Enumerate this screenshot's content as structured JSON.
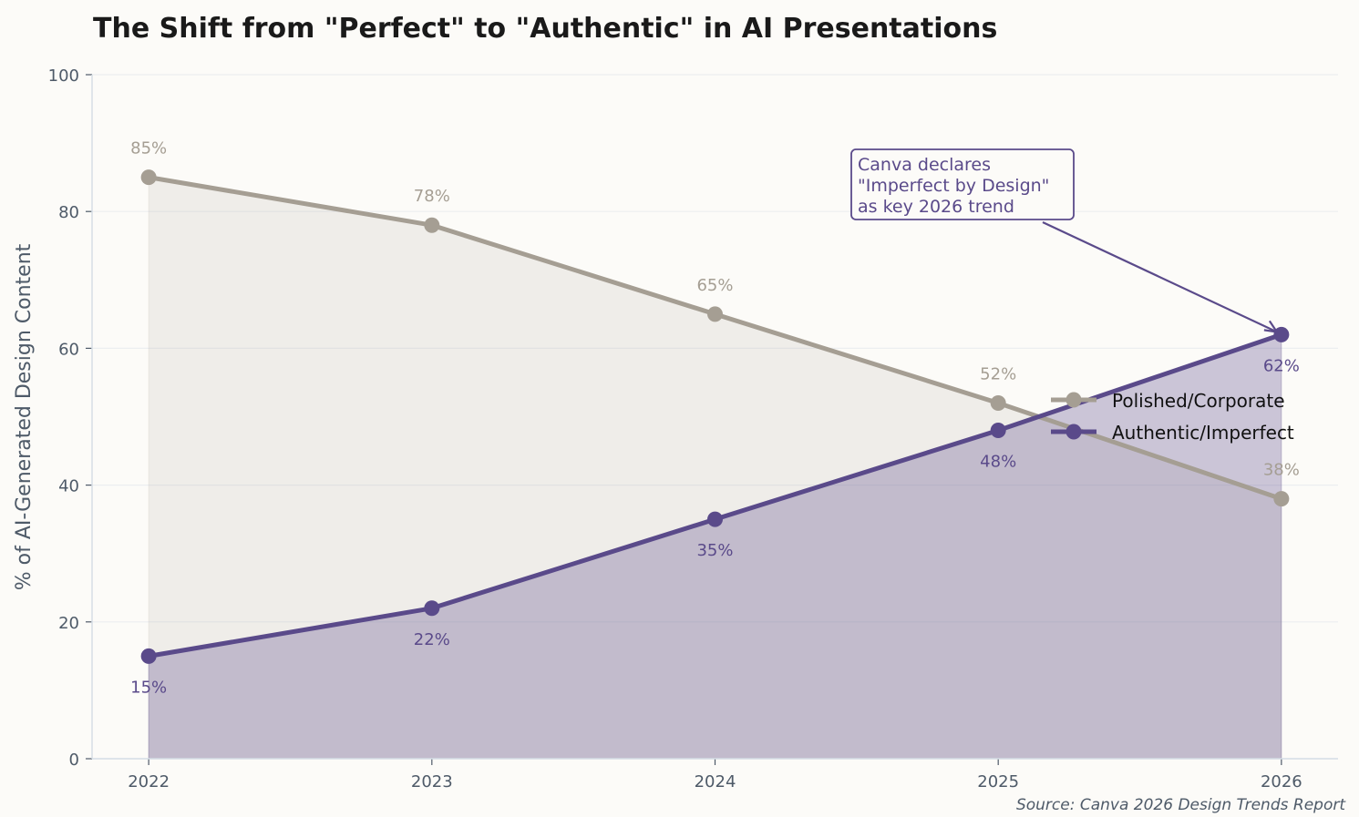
{
  "chart_data": {
    "type": "line",
    "title": "The Shift from \"Perfect\" to \"Authentic\" in AI Presentations",
    "xlabel": "",
    "ylabel": "% of AI-Generated Design Content",
    "x": [
      2022,
      2023,
      2024,
      2025,
      2026
    ],
    "x_tick_labels": [
      "2022",
      "2023",
      "2024",
      "2025",
      "2026"
    ],
    "ylim": [
      0,
      100
    ],
    "y_ticks": [
      0,
      20,
      40,
      60,
      80,
      100
    ],
    "y_tick_labels": [
      "0",
      "20",
      "40",
      "60",
      "80",
      "100"
    ],
    "grid": "horizontal",
    "legend_position": "center-right",
    "series": [
      {
        "name": "Polished/Corporate",
        "values": [
          85,
          78,
          65,
          52,
          38
        ],
        "labels": [
          "85%",
          "78%",
          "65%",
          "52%",
          "38%"
        ],
        "color": "#A59E93",
        "fill": "area-to-zero",
        "label_position": "above"
      },
      {
        "name": "Authentic/Imperfect",
        "values": [
          15,
          22,
          35,
          48,
          62
        ],
        "labels": [
          "15%",
          "22%",
          "35%",
          "48%",
          "62%"
        ],
        "color": "#5A4A8A",
        "fill": "area-to-zero",
        "label_position": "below"
      }
    ],
    "annotation": {
      "text": [
        "Canva declares",
        "\"Imperfect by Design\"",
        "as key 2026 trend"
      ],
      "target_x": 2026,
      "target_y": 62,
      "color": "#5A4A8A"
    },
    "source": "Source: Canva 2026 Design Trends Report"
  },
  "colors": {
    "background": "#FCFBF8",
    "axis": "#D6DEE6",
    "tick_text": "#4E5A68",
    "title": "#1A1A1A"
  }
}
